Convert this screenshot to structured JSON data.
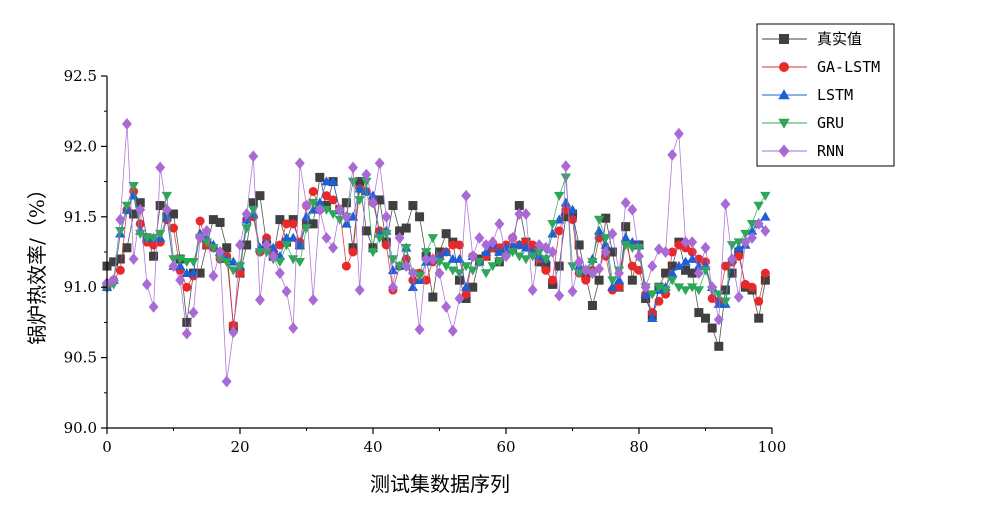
{
  "chart_data": {
    "type": "line",
    "xlabel": "测试集数据序列",
    "ylabel": "锅炉热效率/（%）",
    "xlim": [
      0,
      100
    ],
    "ylim": [
      90.0,
      92.5
    ],
    "x_ticks": [
      "0",
      "20",
      "40",
      "60",
      "80",
      "100"
    ],
    "y_ticks": [
      "90.0",
      "90.5",
      "91.0",
      "91.5",
      "92.0",
      "92.5"
    ],
    "legend_position": "top-right",
    "grid": false,
    "x": [
      0,
      1,
      2,
      3,
      4,
      5,
      6,
      7,
      8,
      9,
      10,
      11,
      12,
      13,
      14,
      15,
      16,
      17,
      18,
      19,
      20,
      21,
      22,
      23,
      24,
      25,
      26,
      27,
      28,
      29,
      30,
      31,
      32,
      33,
      34,
      35,
      36,
      37,
      38,
      39,
      40,
      41,
      42,
      43,
      44,
      45,
      46,
      47,
      48,
      49,
      50,
      51,
      52,
      53,
      54,
      55,
      56,
      57,
      58,
      59,
      60,
      61,
      62,
      63,
      64,
      65,
      66,
      67,
      68,
      69,
      70,
      71,
      72,
      73,
      74,
      75,
      76,
      77,
      78,
      79,
      80,
      81,
      82,
      83,
      84,
      85,
      86,
      87,
      88,
      89,
      90,
      91,
      92,
      93,
      94,
      95,
      96,
      97,
      98,
      99
    ],
    "series": [
      {
        "name": "真实值",
        "color": "#404040",
        "marker": "square",
        "values": [
          91.15,
          91.18,
          91.2,
          91.28,
          91.52,
          91.6,
          91.35,
          91.22,
          91.58,
          91.5,
          91.52,
          91.2,
          90.75,
          91.1,
          91.1,
          91.3,
          91.48,
          91.46,
          91.28,
          90.72,
          91.1,
          91.3,
          91.6,
          91.65,
          91.3,
          91.22,
          91.48,
          91.32,
          91.48,
          91.3,
          91.45,
          91.45,
          91.78,
          91.58,
          91.75,
          91.55,
          91.6,
          91.28,
          91.75,
          91.4,
          91.28,
          91.62,
          91.32,
          91.58,
          91.4,
          91.42,
          91.58,
          91.5,
          91.22,
          90.93,
          91.25,
          91.38,
          91.32,
          91.05,
          90.92,
          91.0,
          91.2,
          91.22,
          91.28,
          91.18,
          91.25,
          91.28,
          91.58,
          91.32,
          91.28,
          91.18,
          91.15,
          91.02,
          91.15,
          91.5,
          91.52,
          91.3,
          91.08,
          90.87,
          91.05,
          91.49,
          91.25,
          91.0,
          91.43,
          91.05,
          91.3,
          90.92,
          90.8,
          91.0,
          91.1,
          91.15,
          91.32,
          91.12,
          91.1,
          90.82,
          90.78,
          90.71,
          90.58,
          90.98,
          91.1,
          91.25,
          91.0,
          90.98,
          90.78,
          91.05
        ]
      },
      {
        "name": "GA-LSTM",
        "color": "#e8292a",
        "marker": "circle",
        "values": [
          91.0,
          91.05,
          91.12,
          91.55,
          91.68,
          91.45,
          91.32,
          91.3,
          91.32,
          91.48,
          91.42,
          91.12,
          91.0,
          91.08,
          91.47,
          91.3,
          91.28,
          91.2,
          91.22,
          90.73,
          91.1,
          91.48,
          91.5,
          91.25,
          91.35,
          91.25,
          91.3,
          91.45,
          91.45,
          91.32,
          91.58,
          91.68,
          91.55,
          91.65,
          91.62,
          91.55,
          91.15,
          91.25,
          91.7,
          91.68,
          91.6,
          91.4,
          91.3,
          90.98,
          91.15,
          91.2,
          91.05,
          91.1,
          91.05,
          91.18,
          91.22,
          91.25,
          91.3,
          91.3,
          90.95,
          91.22,
          91.18,
          91.22,
          91.28,
          91.28,
          91.3,
          91.35,
          91.3,
          91.32,
          91.3,
          91.2,
          91.12,
          91.05,
          91.4,
          91.55,
          91.48,
          91.1,
          91.05,
          91.12,
          91.35,
          91.22,
          90.98,
          91.0,
          91.32,
          91.15,
          91.12,
          90.95,
          90.82,
          90.9,
          90.95,
          91.25,
          91.3,
          91.28,
          91.25,
          91.2,
          91.18,
          90.92,
          90.9,
          91.15,
          91.18,
          91.22,
          91.02,
          91.0,
          90.9,
          91.1
        ]
      },
      {
        "name": "LSTM",
        "color": "#1f5fd6",
        "marker": "triangle-up",
        "values": [
          91.0,
          91.05,
          91.38,
          91.55,
          91.65,
          91.4,
          91.35,
          91.35,
          91.35,
          91.5,
          91.15,
          91.15,
          91.1,
          91.1,
          91.38,
          91.35,
          91.3,
          91.25,
          91.2,
          91.18,
          91.15,
          91.48,
          91.52,
          91.28,
          91.32,
          91.28,
          91.22,
          91.35,
          91.35,
          91.3,
          91.5,
          91.55,
          91.6,
          91.75,
          91.75,
          91.55,
          91.45,
          91.5,
          91.7,
          91.68,
          91.65,
          91.38,
          91.4,
          91.12,
          91.15,
          91.28,
          91.0,
          91.05,
          91.18,
          91.2,
          91.22,
          91.25,
          91.2,
          91.2,
          91.0,
          91.22,
          91.18,
          91.25,
          91.3,
          91.25,
          91.28,
          91.3,
          91.3,
          91.28,
          91.25,
          91.22,
          91.2,
          91.38,
          91.48,
          91.6,
          91.55,
          91.15,
          91.12,
          91.2,
          91.4,
          91.3,
          91.0,
          91.05,
          91.35,
          91.32,
          91.3,
          90.95,
          90.78,
          90.98,
          91.0,
          91.1,
          91.15,
          91.18,
          91.2,
          91.15,
          91.15,
          91.0,
          90.88,
          90.88,
          91.2,
          91.28,
          91.3,
          91.4,
          91.45,
          91.5
        ]
      },
      {
        "name": "GRU",
        "color": "#2ca858",
        "marker": "triangle-down",
        "values": [
          91.0,
          91.02,
          91.4,
          91.58,
          91.72,
          91.38,
          91.35,
          91.35,
          91.38,
          91.65,
          91.2,
          91.2,
          91.18,
          91.18,
          91.35,
          91.32,
          91.28,
          91.2,
          91.18,
          91.12,
          91.15,
          91.42,
          91.55,
          91.25,
          91.25,
          91.2,
          91.18,
          91.3,
          91.2,
          91.18,
          91.42,
          91.6,
          91.55,
          91.55,
          91.52,
          91.48,
          91.5,
          91.75,
          91.62,
          91.75,
          91.25,
          91.35,
          91.38,
          91.2,
          91.15,
          91.28,
          91.1,
          91.08,
          91.25,
          91.35,
          91.18,
          91.15,
          91.12,
          91.1,
          91.15,
          91.12,
          91.18,
          91.1,
          91.15,
          91.18,
          91.22,
          91.25,
          91.22,
          91.2,
          91.22,
          91.25,
          91.2,
          91.45,
          91.65,
          91.78,
          91.15,
          91.1,
          91.12,
          91.18,
          91.48,
          91.35,
          91.05,
          91.12,
          91.3,
          91.28,
          91.28,
          91.0,
          90.95,
          91.0,
          90.98,
          91.05,
          91.0,
          90.98,
          91.0,
          90.98,
          91.12,
          90.98,
          90.95,
          90.9,
          91.3,
          91.32,
          91.38,
          91.45,
          91.58,
          91.65
        ]
      },
      {
        "name": "RNN",
        "color": "#a96ad6",
        "marker": "diamond",
        "values": [
          91.03,
          91.05,
          91.48,
          92.16,
          91.2,
          91.55,
          91.02,
          90.86,
          91.85,
          91.55,
          91.15,
          91.05,
          90.67,
          90.82,
          91.35,
          91.4,
          91.08,
          91.25,
          90.33,
          90.68,
          91.3,
          91.52,
          91.93,
          90.91,
          91.3,
          91.22,
          91.1,
          90.97,
          90.71,
          91.88,
          91.58,
          90.91,
          91.55,
          91.35,
          91.28,
          91.55,
          91.5,
          91.85,
          90.98,
          91.8,
          91.6,
          91.88,
          91.5,
          91.0,
          91.35,
          91.15,
          91.1,
          90.7,
          91.2,
          91.2,
          91.1,
          90.86,
          90.69,
          90.92,
          91.65,
          91.22,
          91.35,
          91.3,
          91.32,
          91.45,
          91.22,
          91.35,
          91.52,
          91.52,
          90.98,
          91.3,
          91.28,
          91.25,
          90.94,
          91.86,
          90.97,
          91.18,
          91.12,
          91.1,
          91.13,
          91.25,
          91.38,
          91.1,
          91.6,
          91.55,
          91.22,
          91.0,
          91.15,
          91.27,
          91.25,
          91.94,
          92.09,
          91.32,
          91.32,
          91.1,
          91.28,
          91.0,
          90.77,
          91.59,
          91.2,
          90.93,
          91.32,
          91.35,
          91.45,
          91.4
        ]
      }
    ]
  }
}
